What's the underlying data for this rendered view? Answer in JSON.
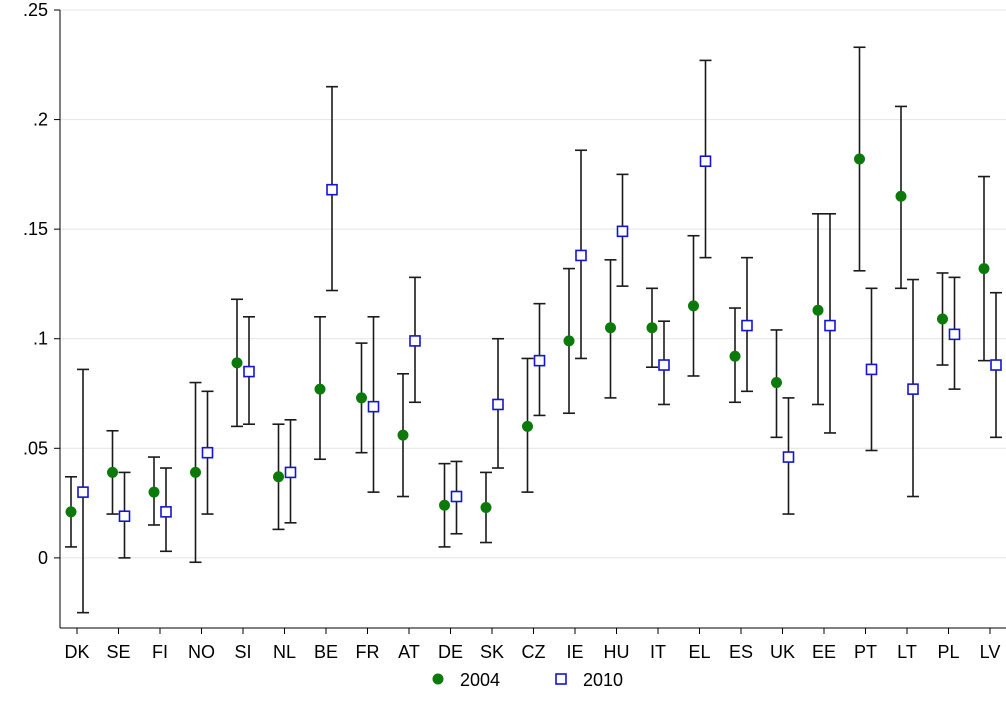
{
  "chart_data": {
    "type": "scatter",
    "categories": [
      "DK",
      "SE",
      "FI",
      "NO",
      "SI",
      "NL",
      "BE",
      "FR",
      "AT",
      "DE",
      "SK",
      "CZ",
      "IE",
      "HU",
      "IT",
      "EL",
      "ES",
      "UK",
      "EE",
      "PT",
      "LT",
      "PL",
      "LV"
    ],
    "ylim": [
      -0.032,
      0.25
    ],
    "yticks": [
      0,
      0.05,
      0.1,
      0.15,
      0.2,
      0.25
    ],
    "ytick_labels": [
      "0",
      ".05",
      ".1",
      ".15",
      ".2",
      ".25"
    ],
    "grid": true,
    "legend_position": "bottom",
    "series": [
      {
        "name": "2004",
        "marker": "filled-circle",
        "color": "#0b7a0b",
        "values": [
          0.021,
          0.039,
          0.03,
          0.039,
          0.089,
          0.037,
          0.077,
          0.073,
          0.056,
          0.024,
          0.023,
          0.06,
          0.099,
          0.105,
          0.105,
          0.115,
          0.092,
          0.08,
          0.113,
          0.182,
          0.165,
          0.109,
          0.132
        ],
        "ci_low": [
          0.005,
          0.02,
          0.015,
          -0.002,
          0.06,
          0.013,
          0.045,
          0.048,
          0.028,
          0.005,
          0.007,
          0.03,
          0.066,
          0.073,
          0.087,
          0.083,
          0.071,
          0.055,
          0.07,
          0.131,
          0.123,
          0.088,
          0.09
        ],
        "ci_high": [
          0.037,
          0.058,
          0.046,
          0.08,
          0.118,
          0.061,
          0.11,
          0.098,
          0.084,
          0.043,
          0.039,
          0.091,
          0.132,
          0.136,
          0.123,
          0.147,
          0.114,
          0.104,
          0.157,
          0.233,
          0.206,
          0.13,
          0.174
        ]
      },
      {
        "name": "2010",
        "marker": "hollow-square",
        "color": "#1414d4",
        "values": [
          0.03,
          0.019,
          0.021,
          0.048,
          0.085,
          0.039,
          0.168,
          0.069,
          0.099,
          0.028,
          0.07,
          0.09,
          0.138,
          0.149,
          0.088,
          0.181,
          0.106,
          0.046,
          0.106,
          0.086,
          0.077,
          0.102,
          0.088
        ],
        "ci_low": [
          -0.025,
          0.0,
          0.003,
          0.02,
          0.061,
          0.016,
          0.122,
          0.03,
          0.071,
          0.011,
          0.041,
          0.065,
          0.091,
          0.124,
          0.07,
          0.137,
          0.076,
          0.02,
          0.057,
          0.049,
          0.028,
          0.077,
          0.055
        ],
        "ci_high": [
          0.086,
          0.039,
          0.041,
          0.076,
          0.11,
          0.063,
          0.215,
          0.11,
          0.128,
          0.044,
          0.1,
          0.116,
          0.186,
          0.175,
          0.108,
          0.227,
          0.137,
          0.073,
          0.157,
          0.123,
          0.127,
          0.128,
          0.121
        ]
      }
    ]
  }
}
